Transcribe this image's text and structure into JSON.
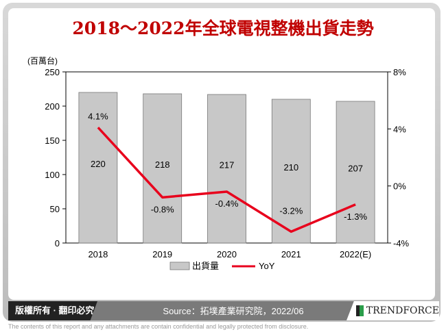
{
  "title": "2018～2022年全球電視整機出貨走勢",
  "footer": {
    "copyright": "版權所有 · 翻印必究",
    "source": "Source：拓墣產業研究院，2022/06",
    "logo_text": "TRENDFORCE",
    "disclaimer": "The contents of this report and any attachments are contain confidential and legally protected from disclosure."
  },
  "chart_data": {
    "type": "bar",
    "title": "2018～2022年全球電視整機出貨走勢",
    "ylabel": "(百萬台)",
    "categories": [
      "2018",
      "2019",
      "2020",
      "2021",
      "2022(E)"
    ],
    "ylim": [
      0,
      250
    ],
    "yticks": [
      "0",
      "50",
      "100",
      "150",
      "200",
      "250"
    ],
    "y2lim": [
      -4,
      8
    ],
    "y2ticks": [
      "-4%",
      "0%",
      "4%",
      "8%"
    ],
    "series": [
      {
        "name": "出貨量",
        "type": "bar",
        "color": "#c8c8c8",
        "values": [
          220,
          218,
          217,
          210,
          207
        ],
        "labels": [
          "220",
          "218",
          "217",
          "210",
          "207"
        ]
      },
      {
        "name": "YoY",
        "type": "line",
        "axis": "right",
        "color": "#e8001c",
        "values": [
          4.1,
          -0.8,
          -0.4,
          -3.2,
          -1.3
        ],
        "labels": [
          "4.1%",
          "-0.8%",
          "-0.4%",
          "-3.2%",
          "-1.3%"
        ]
      }
    ],
    "legend": "bottom"
  }
}
